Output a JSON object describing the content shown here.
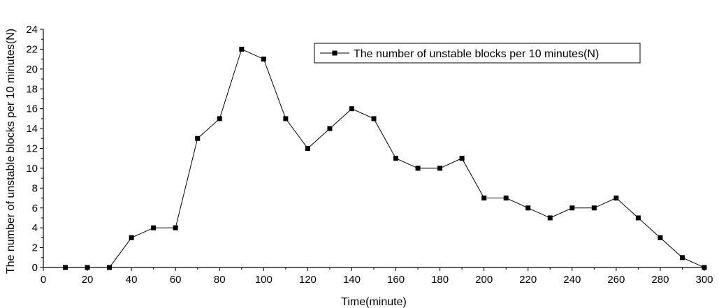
{
  "chart_data": {
    "type": "line",
    "title": "",
    "xlabel": "Time(minute)",
    "ylabel": "The number of unstable blocks per 10 minutes(N)",
    "xlim": [
      0,
      300
    ],
    "ylim": [
      0,
      24
    ],
    "x_ticks": [
      0,
      20,
      40,
      60,
      80,
      100,
      120,
      140,
      160,
      180,
      200,
      220,
      240,
      260,
      280,
      300
    ],
    "y_ticks": [
      0,
      2,
      4,
      6,
      8,
      10,
      12,
      14,
      16,
      18,
      20,
      22,
      24
    ],
    "grid": false,
    "legend_position": "top-right",
    "series": [
      {
        "name": "The number of unstable blocks per 10 minutes(N)",
        "color": "#000000",
        "marker": "square",
        "x": [
          10,
          20,
          30,
          40,
          50,
          60,
          70,
          80,
          90,
          100,
          110,
          120,
          130,
          140,
          150,
          160,
          170,
          180,
          190,
          200,
          210,
          220,
          230,
          240,
          250,
          260,
          270,
          280,
          290,
          300
        ],
        "values": [
          0,
          0,
          0,
          3,
          4,
          4,
          13,
          15,
          22,
          21,
          15,
          12,
          14,
          16,
          15,
          11,
          10,
          10,
          11,
          7,
          7,
          6,
          5,
          6,
          6,
          7,
          5,
          3,
          1,
          0
        ]
      }
    ]
  }
}
